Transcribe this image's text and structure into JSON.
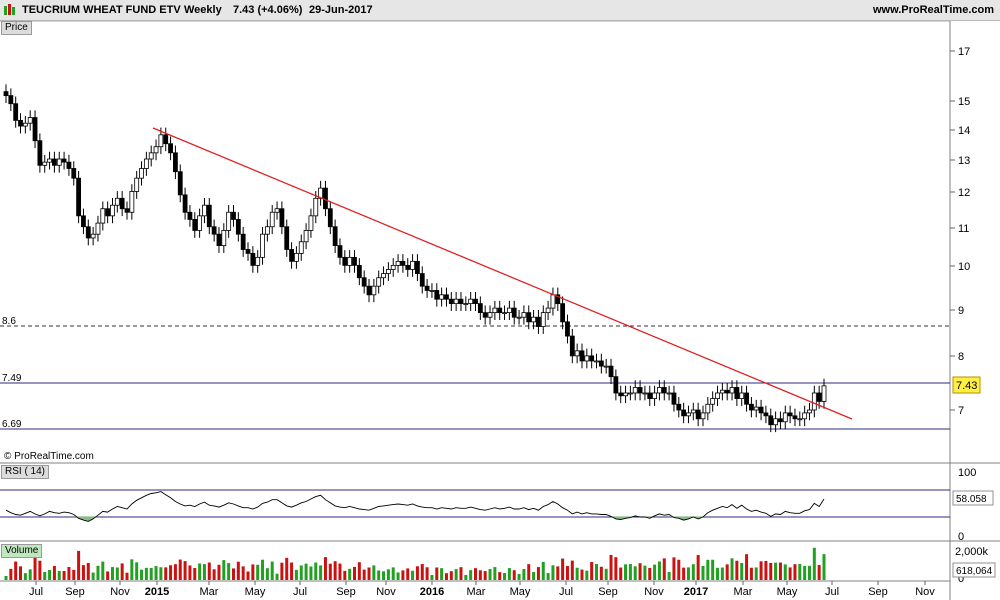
{
  "header": {
    "title": "TEUCRIUM WHEAT FUND ETV",
    "period": "Weekly",
    "last_change": "7.43 (+4.06%)",
    "date": "29-Jun-2017",
    "site": "www.ProRealTime.com"
  },
  "panels": {
    "price_label": "Price",
    "rsi_label": "RSI ( 14)",
    "volume_label": "Volume",
    "copyright": "© ProRealTime.com"
  },
  "colors": {
    "up": "#22a022",
    "down": "#cc1111",
    "trendline": "#e02020",
    "level_line": "#2b2b80",
    "rsi_oversold_fill": "#88bb88",
    "rsi_overbought_fill": "#9999dd",
    "price_tag": "#ffee44"
  },
  "chart_data": [
    {
      "type": "candlestick",
      "title": "TEUCRIUM WHEAT FUND ETV",
      "scale": "log",
      "y_ticks": [
        7,
        8,
        9,
        10,
        11,
        12,
        13,
        14,
        15,
        17
      ],
      "x_ticks": [
        "Jul",
        "Sep",
        "Nov",
        "2015",
        "Mar",
        "May",
        "Jul",
        "Sep",
        "Nov",
        "2016",
        "Mar",
        "May",
        "Jul",
        "Sep",
        "Nov",
        "2017",
        "Mar",
        "May",
        "Jul",
        "Sep",
        "Nov"
      ],
      "level_labels": [
        "8.6",
        "7.49",
        "6.69"
      ],
      "levels": [
        {
          "value": 8.6,
          "label": "8.6",
          "style": "dashed"
        },
        {
          "value": 7.49,
          "label": "7.49",
          "style": "solid"
        },
        {
          "value": 6.69,
          "label": "6.69",
          "style": "solid"
        }
      ],
      "last_price": "7.43",
      "trendline": {
        "from": {
          "x": "2014-12-01",
          "y": 14.1
        },
        "to": {
          "x": "2017-08-07",
          "y": 6.85
        }
      },
      "close": [
        15.2,
        14.9,
        14.3,
        14.1,
        14.2,
        14.4,
        13.6,
        12.8,
        12.9,
        13.0,
        12.8,
        13.0,
        12.9,
        12.7,
        12.4,
        11.3,
        11.0,
        10.7,
        10.8,
        11.1,
        11.5,
        11.3,
        11.6,
        11.8,
        11.5,
        11.4,
        12.0,
        12.4,
        12.7,
        13.0,
        13.2,
        13.4,
        13.8,
        13.5,
        13.2,
        12.6,
        11.9,
        11.4,
        11.2,
        10.9,
        11.3,
        11.6,
        11.0,
        10.8,
        10.5,
        10.9,
        11.4,
        11.2,
        10.8,
        10.4,
        10.3,
        10.0,
        10.2,
        10.8,
        11.0,
        11.4,
        11.5,
        11.0,
        10.4,
        10.1,
        10.3,
        10.6,
        10.9,
        11.3,
        11.8,
        12.1,
        11.5,
        11.0,
        10.5,
        10.2,
        10.0,
        10.2,
        10.0,
        9.7,
        9.5,
        9.3,
        9.5,
        9.7,
        9.8,
        9.9,
        10.0,
        10.1,
        10.0,
        9.9,
        10.1,
        9.8,
        9.5,
        9.4,
        9.4,
        9.2,
        9.3,
        9.2,
        9.1,
        9.2,
        9.1,
        9.1,
        9.2,
        9.1,
        8.9,
        8.8,
        8.9,
        9.0,
        8.9,
        8.9,
        9.0,
        8.8,
        8.8,
        8.9,
        8.7,
        8.8,
        8.6,
        8.9,
        9.0,
        9.3,
        9.1,
        8.7,
        8.4,
        8.0,
        8.1,
        7.9,
        8.0,
        7.9,
        7.9,
        7.8,
        7.8,
        7.6,
        7.3,
        7.25,
        7.3,
        7.3,
        7.4,
        7.3,
        7.3,
        7.2,
        7.3,
        7.4,
        7.3,
        7.3,
        7.1,
        7.0,
        6.9,
        6.95,
        7.0,
        6.85,
        6.95,
        7.1,
        7.2,
        7.3,
        7.35,
        7.3,
        7.4,
        7.2,
        7.3,
        7.1,
        7.0,
        7.05,
        6.95,
        6.9,
        6.75,
        6.85,
        6.8,
        6.95,
        6.9,
        6.85,
        6.85,
        6.95,
        7.0,
        7.3,
        7.15,
        7.43
      ],
      "volume_ticks": [
        "2,000k",
        "0"
      ],
      "volume_last": "618,064",
      "rsi_ticks": [
        "100",
        "0"
      ],
      "rsi_levels": [
        70,
        30
      ],
      "rsi_last": "58.058",
      "rsi": [
        40,
        36,
        33,
        32,
        35,
        38,
        34,
        31,
        34,
        38,
        36,
        35,
        37,
        36,
        33,
        27,
        24,
        22,
        26,
        32,
        38,
        37,
        42,
        46,
        44,
        42,
        50,
        56,
        60,
        64,
        67,
        68,
        70,
        65,
        60,
        54,
        50,
        47,
        48,
        46,
        50,
        53,
        48,
        47,
        45,
        48,
        52,
        50,
        47,
        44,
        44,
        42,
        45,
        51,
        53,
        57,
        57,
        52,
        47,
        45,
        48,
        52,
        54,
        58,
        62,
        64,
        57,
        52,
        47,
        45,
        44,
        46,
        44,
        42,
        41,
        40,
        43,
        46,
        47,
        48,
        49,
        50,
        49,
        48,
        50,
        47,
        45,
        44,
        44,
        42,
        44,
        43,
        42,
        44,
        43,
        43,
        45,
        43,
        41,
        40,
        42,
        44,
        42,
        43,
        45,
        42,
        42,
        44,
        41,
        43,
        40,
        46,
        49,
        54,
        50,
        44,
        40,
        34,
        37,
        34,
        36,
        34,
        34,
        33,
        33,
        30,
        26,
        25,
        27,
        28,
        31,
        29,
        29,
        27,
        31,
        34,
        32,
        33,
        28,
        27,
        24,
        26,
        29,
        26,
        29,
        36,
        40,
        43,
        46,
        44,
        49,
        43,
        48,
        42,
        38,
        40,
        37,
        35,
        30,
        34,
        33,
        38,
        36,
        35,
        35,
        39,
        41,
        51,
        46,
        58
      ]
    }
  ]
}
